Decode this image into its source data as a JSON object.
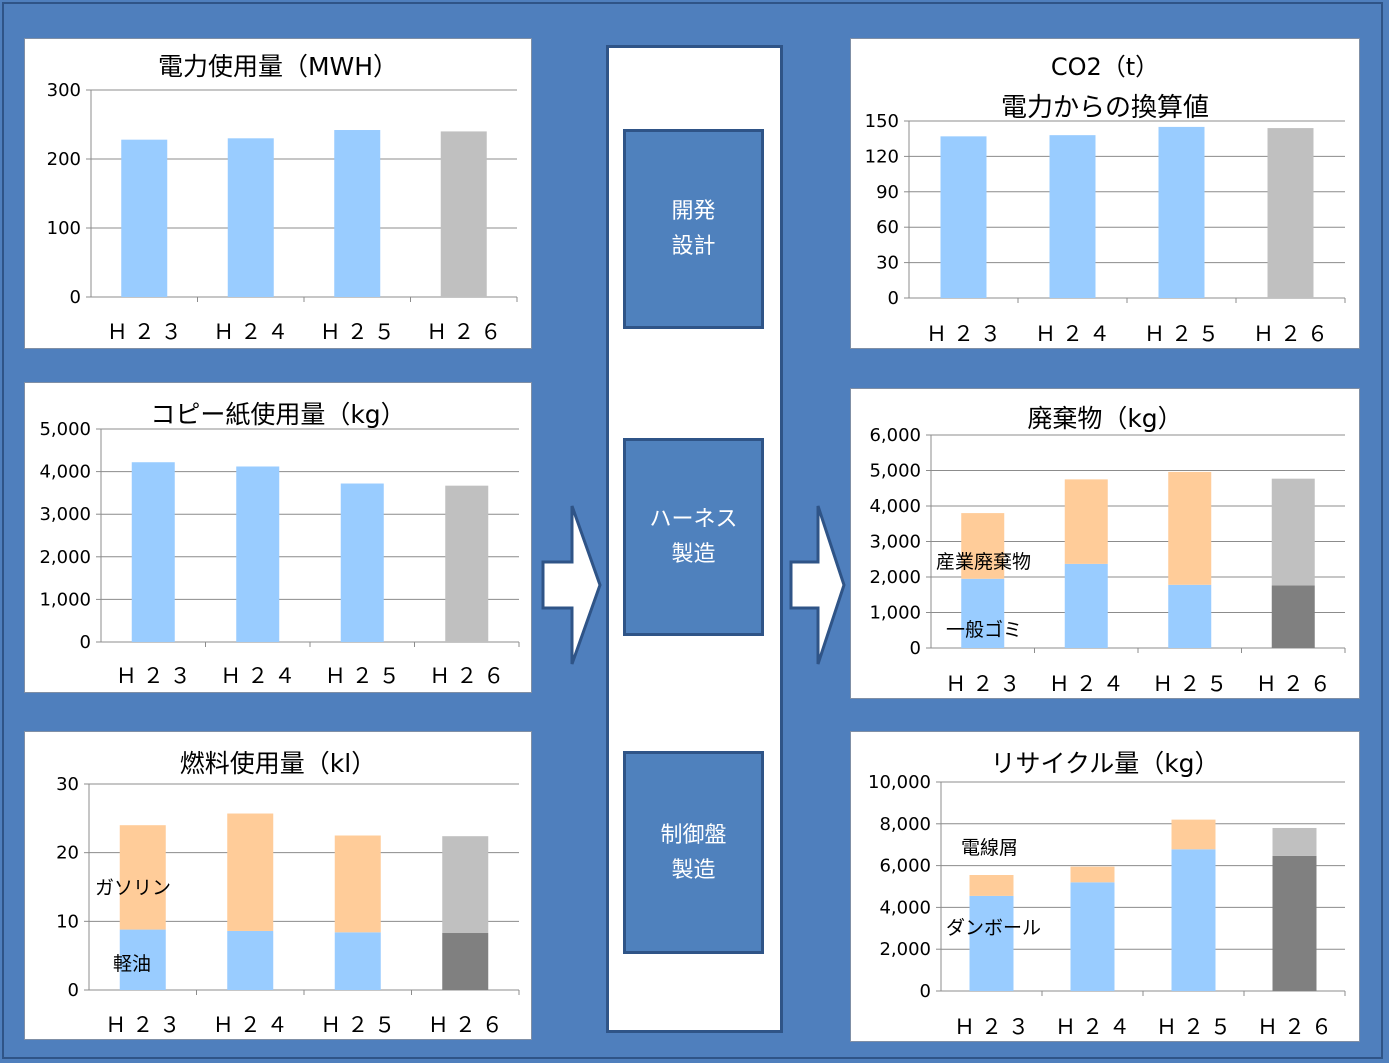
{
  "process": {
    "dev": [
      "開発",
      "設計"
    ],
    "harness": [
      "ハーネス",
      "製造"
    ],
    "panel": [
      "制御盤",
      "製造"
    ]
  },
  "chart_data": [
    {
      "id": "electricity",
      "type": "bar",
      "title": "電力使用量（MWH）",
      "categories": [
        "Ｈ２３",
        "Ｈ２４",
        "Ｈ２５",
        "Ｈ２６"
      ],
      "series": [
        {
          "values": [
            228,
            230,
            242,
            240
          ]
        }
      ],
      "ylim": [
        0,
        300
      ],
      "yticks": [
        "0",
        "100",
        "200",
        "300"
      ],
      "grid": true,
      "colors": [
        "#99ccff",
        "#99ccff",
        "#99ccff",
        "#c0c0c0"
      ]
    },
    {
      "id": "paper",
      "type": "bar",
      "title": "コピー紙使用量（kg）",
      "categories": [
        "Ｈ２３",
        "Ｈ２４",
        "Ｈ２５",
        "Ｈ２６"
      ],
      "series": [
        {
          "values": [
            4220,
            4120,
            3720,
            3670
          ]
        }
      ],
      "ylim": [
        0,
        5000
      ],
      "yticks": [
        "0",
        "1,000",
        "2,000",
        "3,000",
        "4,000",
        "5,000"
      ],
      "grid": true,
      "colors": [
        "#99ccff",
        "#99ccff",
        "#99ccff",
        "#c0c0c0"
      ]
    },
    {
      "id": "fuel",
      "type": "bar",
      "stacked": true,
      "title": "燃料使用量（kl）",
      "categories": [
        "Ｈ２３",
        "Ｈ２４",
        "Ｈ２５",
        "Ｈ２６"
      ],
      "series": [
        {
          "name": "軽油",
          "values": [
            8.8,
            8.6,
            8.4,
            8.3
          ]
        },
        {
          "name": "ガソリン",
          "values": [
            15.2,
            17.1,
            14.1,
            14.1
          ]
        }
      ],
      "ylim": [
        0,
        30
      ],
      "yticks": [
        "0",
        "10",
        "20",
        "30"
      ],
      "grid": true,
      "colors": [
        [
          "#99ccff",
          "#ffcc99"
        ],
        [
          "#99ccff",
          "#ffcc99"
        ],
        [
          "#99ccff",
          "#ffcc99"
        ],
        [
          "#808080",
          "#c0c0c0"
        ]
      ]
    },
    {
      "id": "co2",
      "type": "bar",
      "title": "CO2（t）",
      "subtitle": "電力からの換算値",
      "categories": [
        "Ｈ２３",
        "Ｈ２４",
        "Ｈ２５",
        "Ｈ２６"
      ],
      "series": [
        {
          "values": [
            137,
            138,
            145,
            144
          ]
        }
      ],
      "ylim": [
        0,
        150
      ],
      "yticks": [
        "0",
        "30",
        "60",
        "90",
        "120",
        "150"
      ],
      "grid": true,
      "colors": [
        "#99ccff",
        "#99ccff",
        "#99ccff",
        "#c0c0c0"
      ]
    },
    {
      "id": "waste",
      "type": "bar",
      "stacked": true,
      "title": "廃棄物（kg）",
      "categories": [
        "Ｈ２３",
        "Ｈ２４",
        "Ｈ２５",
        "Ｈ２６"
      ],
      "series": [
        {
          "name": "一般ゴミ",
          "values": [
            1950,
            2370,
            1780,
            1760
          ]
        },
        {
          "name": "産業廃棄物",
          "values": [
            1850,
            2380,
            3180,
            3010
          ]
        }
      ],
      "ylim": [
        0,
        6000
      ],
      "yticks": [
        "0",
        "1,000",
        "2,000",
        "3,000",
        "4,000",
        "5,000",
        "6,000"
      ],
      "grid": true,
      "colors": [
        [
          "#99ccff",
          "#ffcc99"
        ],
        [
          "#99ccff",
          "#ffcc99"
        ],
        [
          "#99ccff",
          "#ffcc99"
        ],
        [
          "#808080",
          "#c0c0c0"
        ]
      ]
    },
    {
      "id": "recycle",
      "type": "bar",
      "stacked": true,
      "title": "リサイクル量（kg）",
      "categories": [
        "Ｈ２３",
        "Ｈ２４",
        "Ｈ２５",
        "Ｈ２６"
      ],
      "series": [
        {
          "name": "ダンボール",
          "values": [
            4550,
            5200,
            6780,
            6470
          ]
        },
        {
          "name": "電線屑",
          "values": [
            1000,
            750,
            1420,
            1330
          ]
        }
      ],
      "ylim": [
        0,
        10000
      ],
      "yticks": [
        "0",
        "2,000",
        "4,000",
        "6,000",
        "8,000",
        "10,000"
      ],
      "grid": true,
      "colors": [
        [
          "#99ccff",
          "#ffcc99"
        ],
        [
          "#99ccff",
          "#ffcc99"
        ],
        [
          "#99ccff",
          "#ffcc99"
        ],
        [
          "#808080",
          "#c0c0c0"
        ]
      ]
    }
  ]
}
